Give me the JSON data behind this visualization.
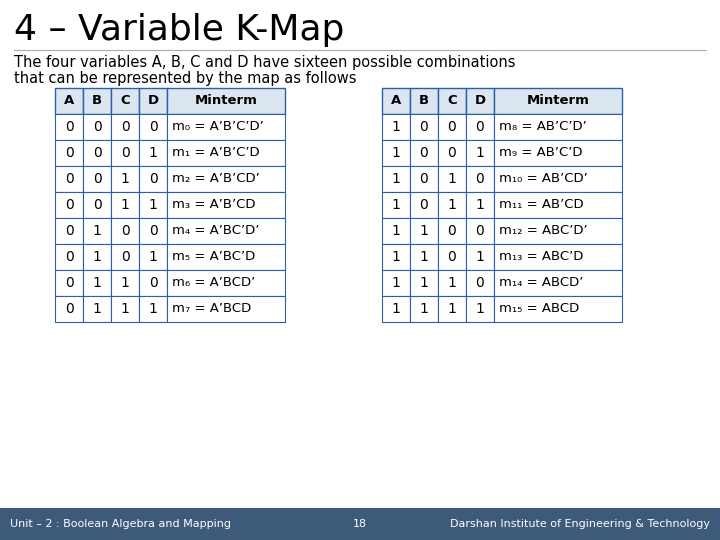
{
  "title": "4 – Variable K-Map",
  "subtitle_line1": "The four variables A, B, C and D have sixteen possible combinations",
  "subtitle_line2": "that can be represented by the map as follows",
  "background_color": "#ffffff",
  "title_color": "#000000",
  "subtitle_color": "#000000",
  "footer_left": "Unit – 2 : Boolean Algebra and Mapping",
  "footer_center": "18",
  "footer_right": "Darshan Institute of Engineering & Technology",
  "footer_bg": "#3d5a7a",
  "footer_text_color": "#ffffff",
  "table1_headers": [
    "A",
    "B",
    "C",
    "D",
    "Minterm"
  ],
  "table1_rows": [
    [
      "0",
      "0",
      "0",
      "0",
      "m₀ = A’B’C’D’"
    ],
    [
      "0",
      "0",
      "0",
      "1",
      "m₁ = A’B’C’D"
    ],
    [
      "0",
      "0",
      "1",
      "0",
      "m₂ = A’B’CD’"
    ],
    [
      "0",
      "0",
      "1",
      "1",
      "m₃ = A’B’CD"
    ],
    [
      "0",
      "1",
      "0",
      "0",
      "m₄ = A’BC’D’"
    ],
    [
      "0",
      "1",
      "0",
      "1",
      "m₅ = A’BC’D"
    ],
    [
      "0",
      "1",
      "1",
      "0",
      "m₆ = A’BCD’"
    ],
    [
      "0",
      "1",
      "1",
      "1",
      "m₇ = A’BCD"
    ]
  ],
  "table2_headers": [
    "A",
    "B",
    "C",
    "D",
    "Minterm"
  ],
  "table2_rows": [
    [
      "1",
      "0",
      "0",
      "0",
      "m₈ = AB’C’D’"
    ],
    [
      "1",
      "0",
      "0",
      "1",
      "m₉ = AB’C’D"
    ],
    [
      "1",
      "0",
      "1",
      "0",
      "m₁₀ = AB’CD’"
    ],
    [
      "1",
      "0",
      "1",
      "1",
      "m₁₁ = AB’CD"
    ],
    [
      "1",
      "1",
      "0",
      "0",
      "m₁₂ = ABC’D’"
    ],
    [
      "1",
      "1",
      "0",
      "1",
      "m₁₃ = ABC’D"
    ],
    [
      "1",
      "1",
      "1",
      "0",
      "m₁₄ = ABCD’"
    ],
    [
      "1",
      "1",
      "1",
      "1",
      "m₁₅ = ABCD"
    ]
  ],
  "header_bg": "#dce6f1",
  "row_bg": "#ffffff",
  "border_color": "#2e5ea6",
  "text_color": "#000000",
  "header_text_color": "#000000",
  "title_fontsize": 26,
  "subtitle_fontsize": 10.5,
  "table_header_fontsize": 9.5,
  "table_cell_fontsize": 9.5,
  "footer_fontsize": 8
}
